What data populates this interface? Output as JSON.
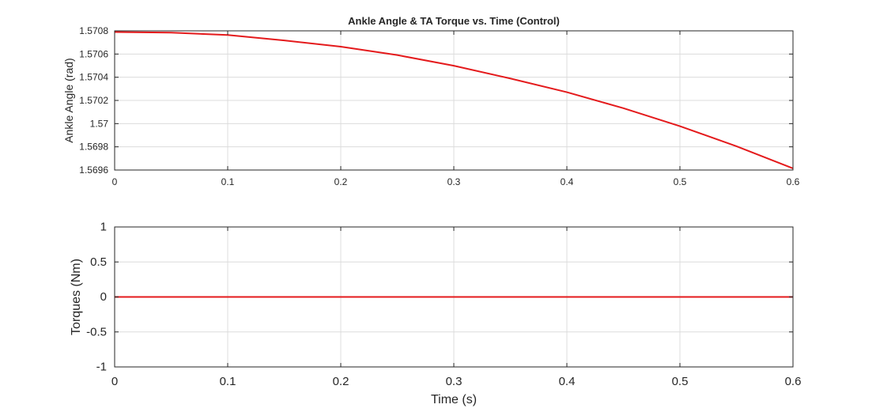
{
  "chart_data": [
    {
      "type": "line",
      "title": "Ankle Angle & TA Torque vs. Time (Control)",
      "xlabel": "",
      "ylabel": "Ankle Angle (rad)",
      "xlim": [
        0,
        0.6
      ],
      "ylim": [
        1.5696,
        1.5708
      ],
      "xticks": [
        0,
        0.1,
        0.2,
        0.3,
        0.4,
        0.5,
        0.6
      ],
      "xtick_labels": [
        "0",
        "0.1",
        "0.2",
        "0.3",
        "0.4",
        "0.5",
        "0.6"
      ],
      "yticks": [
        1.5696,
        1.5698,
        1.57,
        1.5702,
        1.5704,
        1.5706,
        1.5708
      ],
      "ytick_labels": [
        "1.5696",
        "1.5698",
        "1.57",
        "1.5702",
        "1.5704",
        "1.5706",
        "1.5708"
      ],
      "grid": true,
      "series": [
        {
          "color": "#e41a1c",
          "x": [
            0,
            0.05,
            0.1,
            0.15,
            0.2,
            0.25,
            0.3,
            0.35,
            0.4,
            0.45,
            0.5,
            0.55,
            0.6
          ],
          "y": [
            1.57079,
            1.570785,
            1.570764,
            1.570717,
            1.570664,
            1.570591,
            1.570499,
            1.570389,
            1.570271,
            1.570133,
            1.569978,
            1.569805,
            1.569614
          ]
        }
      ]
    },
    {
      "type": "line",
      "title": "",
      "xlabel": "Time (s)",
      "ylabel": "Torques (Nm)",
      "xlim": [
        0,
        0.6
      ],
      "ylim": [
        -1,
        1
      ],
      "xticks": [
        0,
        0.1,
        0.2,
        0.3,
        0.4,
        0.5,
        0.6
      ],
      "xtick_labels": [
        "0",
        "0.1",
        "0.2",
        "0.3",
        "0.4",
        "0.5",
        "0.6"
      ],
      "yticks": [
        -1,
        -0.5,
        0,
        0.5,
        1
      ],
      "ytick_labels": [
        "-1",
        "-0.5",
        "0",
        "0.5",
        "1"
      ],
      "grid": true,
      "series": [
        {
          "color": "#e41a1c",
          "x": [
            0,
            0.6
          ],
          "y": [
            0,
            0
          ]
        }
      ]
    }
  ]
}
